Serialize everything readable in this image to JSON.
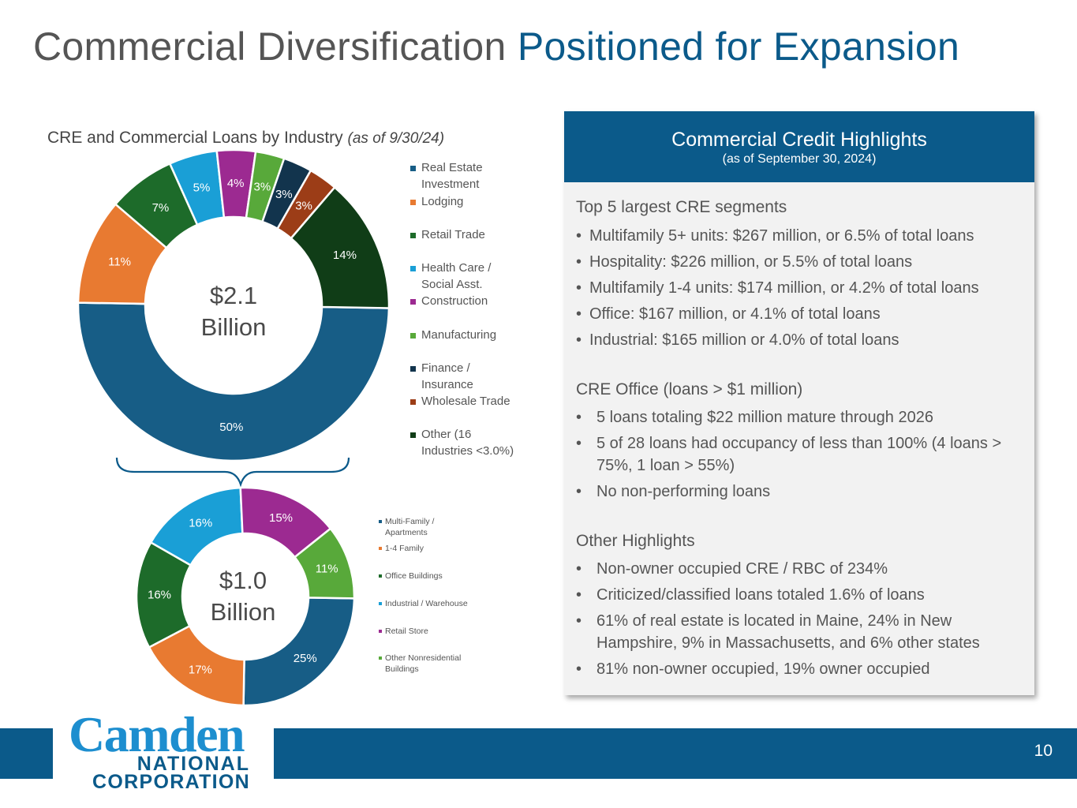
{
  "title": {
    "main": "Commercial Diversification",
    "accent": "Positioned for Expansion"
  },
  "chart_data": [
    {
      "type": "pie",
      "title": "CRE and Commercial Loans by Industry",
      "title_note": "(as of 9/30/24)",
      "center_label": [
        "$2.1",
        "Billion"
      ],
      "legend_position": "right",
      "slices": [
        {
          "label": "Real Estate Investment",
          "legend_lines": [
            "Real Estate",
            "Investment"
          ],
          "value": 50,
          "text": "50%",
          "color": "#175d86",
          "label_color": "#ffffff"
        },
        {
          "label": "Lodging",
          "legend_lines": [
            "Lodging"
          ],
          "value": 11,
          "text": "11%",
          "color": "#e87a31",
          "label_color": "#ffffff"
        },
        {
          "label": "Retail Trade",
          "legend_lines": [
            "Retail Trade"
          ],
          "value": 7,
          "text": "7%",
          "color": "#1d6b2a",
          "label_color": "#ffffff"
        },
        {
          "label": "Health Care / Social Asst.",
          "legend_lines": [
            "Health Care /",
            "Social Asst."
          ],
          "value": 5,
          "text": "5%",
          "color": "#1a9fd6",
          "label_color": "#ffffff"
        },
        {
          "label": "Construction",
          "legend_lines": [
            "Construction"
          ],
          "value": 4,
          "text": "4%",
          "color": "#9c2a91",
          "label_color": "#ffffff"
        },
        {
          "label": "Manufacturing",
          "legend_lines": [
            "Manufacturing"
          ],
          "value": 3,
          "text": "3%",
          "color": "#58a93a",
          "label_color": "#ffffff"
        },
        {
          "label": "Finance / Insurance",
          "legend_lines": [
            "Finance /",
            "Insurance"
          ],
          "value": 3,
          "text": "3%",
          "color": "#12344d",
          "label_color": "#ffffff"
        },
        {
          "label": "Wholesale Trade",
          "legend_lines": [
            "Wholesale Trade"
          ],
          "value": 3,
          "text": "3%",
          "color": "#9c3d17",
          "label_color": "#ffffff"
        },
        {
          "label": "Other (16 Industries <3.0%)",
          "legend_lines": [
            "Other (16",
            "Industries <3.0%)"
          ],
          "value": 14,
          "text": "14%",
          "color": "#103d17",
          "label_color": "#ffffff"
        }
      ]
    },
    {
      "type": "pie",
      "center_label": [
        "$1.0",
        "Billion"
      ],
      "legend_position": "right",
      "slices": [
        {
          "label": "Multi-Family / Apartments",
          "legend_lines": [
            "Multi-Family /",
            "Apartments"
          ],
          "value": 25,
          "text": "25%",
          "color": "#175d86",
          "label_color": "#ffffff"
        },
        {
          "label": "1-4 Family",
          "legend_lines": [
            "1-4 Family"
          ],
          "value": 17,
          "text": "17%",
          "color": "#e87a31",
          "label_color": "#ffffff"
        },
        {
          "label": "Office Buildings",
          "legend_lines": [
            "Office Buildings"
          ],
          "value": 16,
          "text": "16%",
          "color": "#1d6b2a",
          "label_color": "#ffffff"
        },
        {
          "label": "Industrial / Warehouse",
          "legend_lines": [
            "Industrial / Warehouse"
          ],
          "value": 16,
          "text": "16%",
          "color": "#1a9fd6",
          "label_color": "#ffffff"
        },
        {
          "label": "Retail Store",
          "legend_lines": [
            "Retail Store"
          ],
          "value": 15,
          "text": "15%",
          "color": "#9c2a91",
          "label_color": "#ffffff"
        },
        {
          "label": "Other Nonresidential Buildings",
          "legend_lines": [
            "Other Nonresidential",
            "Buildings"
          ],
          "value": 11,
          "text": "11%",
          "color": "#58a93a",
          "label_color": "#ffffff"
        }
      ]
    }
  ],
  "panel": {
    "title": "Commercial Credit Highlights",
    "subtitle": "(as of September 30, 2024)",
    "sections": [
      {
        "title": "Top 5 largest CRE segments",
        "bullets": [
          "Multifamily 5+ units: $267 million, or 6.5% of total loans",
          "Hospitality: $226 million, or 5.5% of total loans",
          "Multifamily 1-4 units: $174 million, or 4.2% of total loans",
          "Office: $167 million, or 4.1% of total loans",
          "Industrial: $165 million or 4.0% of total loans"
        ]
      },
      {
        "title": "CRE Office (loans > $1 million)",
        "bullets": [
          "5 loans totaling $22 million mature through 2026",
          "5 of 28 loans had occupancy of less than 100% (4 loans > 75%, 1 loan > 55%)",
          "No non-performing loans"
        ]
      },
      {
        "title": "Other Highlights",
        "bullets": [
          "Non-owner occupied CRE / RBC of 234%",
          "Criticized/classified loans totaled 1.6% of loans",
          "61% of real estate is located in Maine, 24% in New Hampshire, 9% in Massachusetts, and 6% other states",
          "81% non-owner occupied, 19% owner occupied"
        ]
      }
    ]
  },
  "logo": {
    "word": "Camden",
    "line1": "NATIONAL",
    "line2": "CORPORATION"
  },
  "page_number": "10",
  "colors": {
    "brand_blue": "#0b5a8a",
    "logo_light_blue": "#1d8ecf",
    "panel_bg": "#f2f2f2"
  }
}
